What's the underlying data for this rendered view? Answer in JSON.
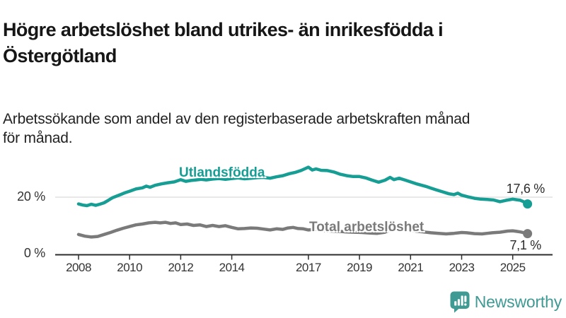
{
  "title": "Högre arbetslöshet bland utrikes- än inrikesfödda i Östergötland",
  "title_lines": [
    "Högre arbetslöshet bland utrikes- än inrikesfödda i",
    "Östergötland"
  ],
  "subtitle": "Arbetssökande som andel av den registerbaserade arbetskraften månad för månad.",
  "subtitle_lines": [
    "Arbetssökande som andel av den registerbaserade arbetskraften månad",
    "för månad."
  ],
  "footer": {
    "brand": "Newsworthy",
    "brand_color": "#3E9A93"
  },
  "chart_data": {
    "type": "line",
    "grid": "single-horizontal-gridline-at-20",
    "legend_position": "inline-labels-on-lines",
    "x_axis": {
      "ticks": [
        2008,
        2010,
        2012,
        2014,
        2017,
        2019,
        2021,
        2023,
        2025
      ],
      "labels": [
        "2008",
        "2010",
        "2012",
        "2014",
        "2017",
        "2019",
        "2021",
        "2023",
        "2025"
      ],
      "range": [
        2008,
        2025.58
      ]
    },
    "y_axis": {
      "labels": [
        "0 %",
        "20 %"
      ],
      "tick_values": [
        0,
        20
      ],
      "gridline_at": 20,
      "range": [
        0,
        33
      ],
      "unit": "%"
    },
    "series": [
      {
        "name": "Utlandsfödda",
        "color": "#169E94",
        "end_label": "17,6 %",
        "latest_value": 17.6,
        "points": [
          [
            2008.0,
            17.6
          ],
          [
            2008.17,
            17.2
          ],
          [
            2008.33,
            17.0
          ],
          [
            2008.5,
            17.5
          ],
          [
            2008.67,
            17.1
          ],
          [
            2008.83,
            17.5
          ],
          [
            2009.0,
            18.0
          ],
          [
            2009.17,
            18.9
          ],
          [
            2009.33,
            19.8
          ],
          [
            2009.5,
            20.4
          ],
          [
            2009.67,
            21.0
          ],
          [
            2009.83,
            21.6
          ],
          [
            2010.0,
            22.1
          ],
          [
            2010.25,
            22.9
          ],
          [
            2010.5,
            23.3
          ],
          [
            2010.65,
            23.9
          ],
          [
            2010.8,
            23.5
          ],
          [
            2011.0,
            24.2
          ],
          [
            2011.25,
            24.7
          ],
          [
            2011.5,
            25.1
          ],
          [
            2011.75,
            25.4
          ],
          [
            2012.0,
            26.2
          ],
          [
            2012.2,
            25.6
          ],
          [
            2012.4,
            25.9
          ],
          [
            2012.6,
            26.1
          ],
          [
            2012.8,
            26.3
          ],
          [
            2013.0,
            26.1
          ],
          [
            2013.25,
            26.4
          ],
          [
            2013.5,
            26.6
          ],
          [
            2013.75,
            26.3
          ],
          [
            2014.0,
            26.6
          ],
          [
            2014.25,
            26.8
          ],
          [
            2014.5,
            26.5
          ],
          [
            2014.75,
            26.7
          ],
          [
            2015.0,
            26.9
          ],
          [
            2015.25,
            27.0
          ],
          [
            2015.5,
            26.7
          ],
          [
            2015.75,
            27.2
          ],
          [
            2016.0,
            27.6
          ],
          [
            2016.25,
            28.3
          ],
          [
            2016.5,
            28.8
          ],
          [
            2016.7,
            29.4
          ],
          [
            2016.85,
            30.0
          ],
          [
            2017.0,
            30.6
          ],
          [
            2017.15,
            29.6
          ],
          [
            2017.3,
            30.0
          ],
          [
            2017.5,
            29.5
          ],
          [
            2017.75,
            29.4
          ],
          [
            2018.0,
            28.9
          ],
          [
            2018.25,
            28.1
          ],
          [
            2018.5,
            27.6
          ],
          [
            2018.75,
            27.3
          ],
          [
            2019.0,
            27.3
          ],
          [
            2019.25,
            26.8
          ],
          [
            2019.5,
            26.0
          ],
          [
            2019.75,
            25.3
          ],
          [
            2020.0,
            26.0
          ],
          [
            2020.2,
            27.0
          ],
          [
            2020.35,
            26.2
          ],
          [
            2020.55,
            26.7
          ],
          [
            2020.8,
            26.0
          ],
          [
            2021.0,
            25.4
          ],
          [
            2021.2,
            24.8
          ],
          [
            2021.4,
            24.3
          ],
          [
            2021.6,
            23.8
          ],
          [
            2021.8,
            23.2
          ],
          [
            2022.0,
            22.6
          ],
          [
            2022.25,
            21.9
          ],
          [
            2022.5,
            21.2
          ],
          [
            2022.7,
            20.9
          ],
          [
            2022.85,
            21.4
          ],
          [
            2023.0,
            20.7
          ],
          [
            2023.25,
            20.1
          ],
          [
            2023.5,
            19.6
          ],
          [
            2023.75,
            19.3
          ],
          [
            2024.0,
            19.2
          ],
          [
            2024.25,
            19.0
          ],
          [
            2024.5,
            18.4
          ],
          [
            2024.75,
            18.9
          ],
          [
            2025.0,
            19.3
          ],
          [
            2025.15,
            19.1
          ],
          [
            2025.3,
            18.9
          ],
          [
            2025.45,
            18.3
          ],
          [
            2025.58,
            17.6
          ]
        ]
      },
      {
        "name": "Total arbetslöshet",
        "color": "#7A7A7A",
        "end_label": "7,1 %",
        "latest_value": 7.1,
        "points": [
          [
            2008.0,
            6.8
          ],
          [
            2008.25,
            6.2
          ],
          [
            2008.5,
            5.9
          ],
          [
            2008.75,
            6.1
          ],
          [
            2009.0,
            6.8
          ],
          [
            2009.25,
            7.5
          ],
          [
            2009.5,
            8.3
          ],
          [
            2009.75,
            9.0
          ],
          [
            2010.0,
            9.6
          ],
          [
            2010.25,
            10.2
          ],
          [
            2010.5,
            10.5
          ],
          [
            2010.75,
            10.9
          ],
          [
            2011.0,
            11.1
          ],
          [
            2011.2,
            10.9
          ],
          [
            2011.4,
            11.1
          ],
          [
            2011.6,
            10.7
          ],
          [
            2011.8,
            10.9
          ],
          [
            2012.0,
            10.3
          ],
          [
            2012.25,
            10.5
          ],
          [
            2012.5,
            10.0
          ],
          [
            2012.75,
            10.2
          ],
          [
            2013.0,
            9.6
          ],
          [
            2013.25,
            10.0
          ],
          [
            2013.5,
            9.6
          ],
          [
            2013.75,
            9.9
          ],
          [
            2014.0,
            9.3
          ],
          [
            2014.25,
            8.8
          ],
          [
            2014.5,
            8.9
          ],
          [
            2014.75,
            9.1
          ],
          [
            2015.0,
            9.0
          ],
          [
            2015.25,
            8.7
          ],
          [
            2015.5,
            8.4
          ],
          [
            2015.75,
            8.8
          ],
          [
            2016.0,
            8.6
          ],
          [
            2016.2,
            9.1
          ],
          [
            2016.4,
            9.3
          ],
          [
            2016.6,
            8.9
          ],
          [
            2016.8,
            8.8
          ],
          [
            2017.0,
            8.4
          ],
          [
            2017.3,
            8.6
          ],
          [
            2017.6,
            8.2
          ],
          [
            2017.9,
            8.0
          ],
          [
            2018.2,
            7.9
          ],
          [
            2018.5,
            7.7
          ],
          [
            2018.8,
            7.6
          ],
          [
            2019.1,
            7.5
          ],
          [
            2019.4,
            7.3
          ],
          [
            2019.7,
            7.2
          ],
          [
            2020.0,
            7.6
          ],
          [
            2020.3,
            8.8
          ],
          [
            2020.6,
            8.8
          ],
          [
            2020.9,
            8.4
          ],
          [
            2021.2,
            8.0
          ],
          [
            2021.5,
            7.7
          ],
          [
            2021.8,
            7.4
          ],
          [
            2022.1,
            7.2
          ],
          [
            2022.4,
            7.0
          ],
          [
            2022.7,
            7.2
          ],
          [
            2023.0,
            7.5
          ],
          [
            2023.2,
            7.4
          ],
          [
            2023.5,
            7.1
          ],
          [
            2023.8,
            7.0
          ],
          [
            2024.0,
            7.2
          ],
          [
            2024.2,
            7.4
          ],
          [
            2024.5,
            7.6
          ],
          [
            2024.8,
            8.0
          ],
          [
            2025.0,
            8.1
          ],
          [
            2025.15,
            7.9
          ],
          [
            2025.3,
            7.7
          ],
          [
            2025.45,
            7.4
          ],
          [
            2025.58,
            7.1
          ]
        ]
      }
    ]
  }
}
